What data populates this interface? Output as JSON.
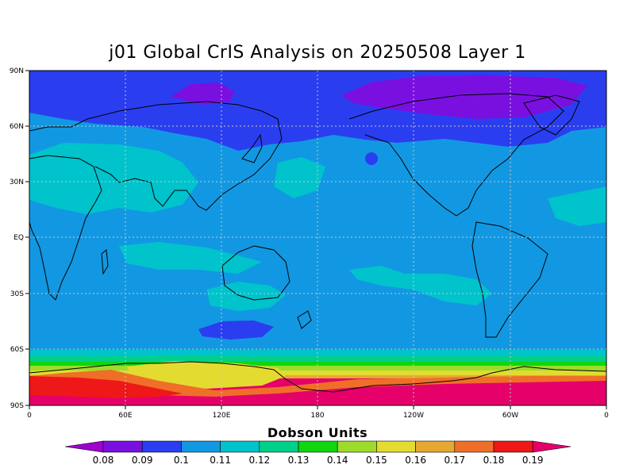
{
  "title": "j01 Global CrIS Analysis on 20250508 Layer 1",
  "lat_ticks": [
    "90N",
    "60N",
    "30N",
    "EQ",
    "30S",
    "60S",
    "90S"
  ],
  "lon_ticks": [
    "0",
    "60E",
    "120E",
    "180",
    "120W",
    "60W",
    "0"
  ],
  "colorbar": {
    "title": "Dobson Units",
    "labels": [
      "0.08",
      "0.09",
      "0.1",
      "0.11",
      "0.12",
      "0.13",
      "0.14",
      "0.15",
      "0.16",
      "0.17",
      "0.18",
      "0.19"
    ],
    "colors": [
      "#9f00d0",
      "#7a10e0",
      "#2a3ef0",
      "#1298e2",
      "#00c3cc",
      "#00d088",
      "#0fd60f",
      "#9ddc2a",
      "#e3db30",
      "#e6a832",
      "#ef6f28",
      "#ee1818",
      "#e5006a"
    ]
  }
}
